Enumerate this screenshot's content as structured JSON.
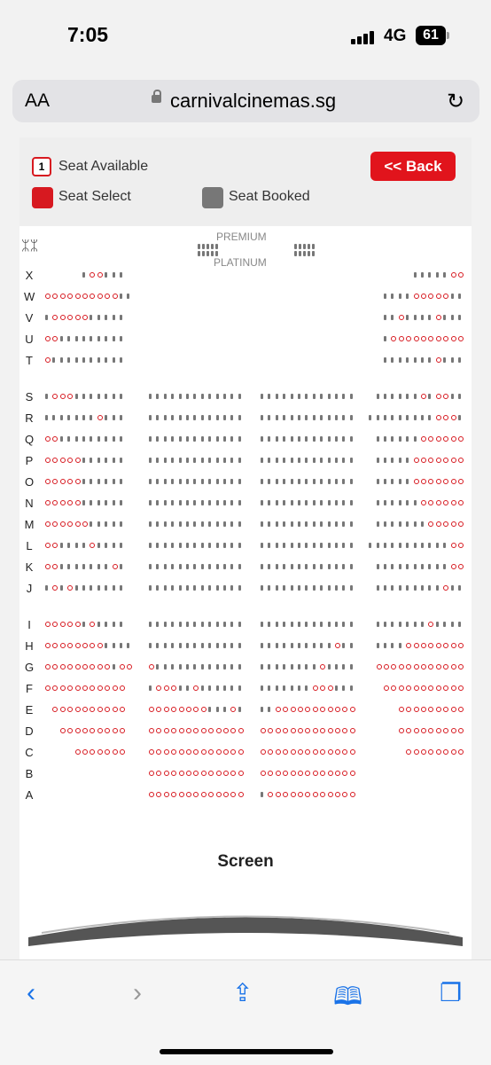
{
  "status_bar": {
    "time": "7:05",
    "network": "4G",
    "battery": "61"
  },
  "browser": {
    "aa_label": "AA",
    "url": "carnivalcinemas.sg"
  },
  "legend": {
    "available_number": "1",
    "available_label": "Seat Available",
    "selected_label": "Seat Select",
    "booked_label": "Seat Booked",
    "back_label": "<< Back"
  },
  "zones": {
    "premium": "PREMIUM",
    "platinum": "PLATINUM"
  },
  "screen_label": "Screen",
  "colors": {
    "brand_red": "#e1141c",
    "booked_grey": "#777777",
    "available_outline": "#d71920"
  },
  "rows": [
    {
      "label": "X",
      "segments": [
        "b a a b b b",
        "",
        "",
        "b b b b b a a"
      ]
    },
    {
      "label": "W",
      "segments": [
        "a a a a a a a a a a b b",
        "",
        "",
        "b b b b a a a a a b b"
      ]
    },
    {
      "label": "V",
      "segments": [
        "b a a a a a b b b b b",
        "",
        "",
        "b b a b b b b a b b b"
      ]
    },
    {
      "label": "U",
      "segments": [
        "a a b b b b b b b b b",
        "",
        "",
        "b a a a a a a a a a a"
      ]
    },
    {
      "label": "T",
      "segments": [
        "a b b b b b b b b b b",
        "",
        "",
        "b b b b b b b a b b b"
      ]
    },
    {
      "label": "S",
      "segments": [
        "b a a a b b b b b b b",
        "b b b b b b b b b b b b b",
        "b b b b b b b b b b b b b",
        "b b b b b b a b a a b b"
      ]
    },
    {
      "label": "R",
      "segments": [
        "b b b b b b b a b b b",
        "b b b b b b b b b b b b b",
        "b b b b b b b b b b b b b",
        "b b b b b b b b b a a a b"
      ]
    },
    {
      "label": "Q",
      "segments": [
        "a a b b b b b b b b b",
        "b b b b b b b b b b b b b",
        "b b b b b b b b b b b b b",
        "b b b b b b a a a a a a"
      ]
    },
    {
      "label": "P",
      "segments": [
        "a a a a a b b b b b b",
        "b b b b b b b b b b b b b",
        "b b b b b b b b b b b b b",
        "b b b b b a a a a a a a"
      ]
    },
    {
      "label": "O",
      "segments": [
        "a a a a a b b b b b b",
        "b b b b b b b b b b b b b",
        "b b b b b b b b b b b b b",
        "b b b b b a a a a a a a"
      ]
    },
    {
      "label": "N",
      "segments": [
        "a a a a a b b b b b b",
        "b b b b b b b b b b b b b",
        "b b b b b b b b b b b b b",
        "b b b b b b a a a a a a"
      ]
    },
    {
      "label": "M",
      "segments": [
        "a a a a a a b b b b b",
        "b b b b b b b b b b b b b",
        "b b b b b b b b b b b b b",
        "b b b b b b b a a a a a"
      ]
    },
    {
      "label": "L",
      "segments": [
        "a a b b b b a b b b b",
        "b b b b b b b b b b b b b",
        "b b b b b b b b b b b b b",
        "b b b b b b b b b b b a a"
      ]
    },
    {
      "label": "K",
      "segments": [
        "a a b b b b b b b a b",
        "b b b b b b b b b b b b b",
        "b b b b b b b b b b b b b",
        "b b b b b b b b b b a a"
      ]
    },
    {
      "label": "J",
      "segments": [
        "b a b a b b b b b b b",
        "b b b b b b b b b b b b b",
        "b b b b b b b b b b b b b",
        "b b b b b b b b b a b b"
      ]
    },
    {
      "label": "I",
      "segments": [
        "a a a a a b a b b b b",
        "b b b b b b b b b b b b b",
        "b b b b b b b b b b b b b",
        "b b b b b b b a b b b b"
      ]
    },
    {
      "label": "H",
      "segments": [
        "a a a a a a a a b b b b",
        "b b b b b b b b b b b b b",
        "b b b b b b b b b b a b b",
        "b b b b a a a a a a a a"
      ]
    },
    {
      "label": "G",
      "segments": [
        "a a a a a a a a a b a a",
        "a b b b b b b b b b b b b",
        "b b b b b b b b a b b b b",
        "a a a a a a a a a a a a"
      ]
    },
    {
      "label": "F",
      "segments": [
        "a a a a a a a a a a a",
        "b a a a b b a b b b b b b",
        "b b b b b b b a a a b b b",
        "a a a a a a a a a a a"
      ]
    },
    {
      "label": "E",
      "segments": [
        "a a a a a a a a a a",
        "a a a a a a a a b b b a b",
        "b b a a a a a a a a a a a",
        "a a a a a a a a a"
      ]
    },
    {
      "label": "D",
      "segments": [
        "a a a a a a a a a",
        "a a a a a a a a a a a a a",
        "a a a a a a a a a a a a a",
        "a a a a a a a a a"
      ]
    },
    {
      "label": "C",
      "segments": [
        "a a a a a a a",
        "a a a a a a a a a a a a a",
        "a a a a a a a a a a a a a",
        "a a a a a a a a"
      ]
    },
    {
      "label": "B",
      "segments": [
        "",
        "a a a a a a a a a a a a a",
        "a a a a a a a a a a a a a",
        ""
      ]
    },
    {
      "label": "A",
      "segments": [
        "",
        "a a a a a a a a a a a a a",
        "b a a a a a a a a a a a a",
        ""
      ]
    }
  ]
}
